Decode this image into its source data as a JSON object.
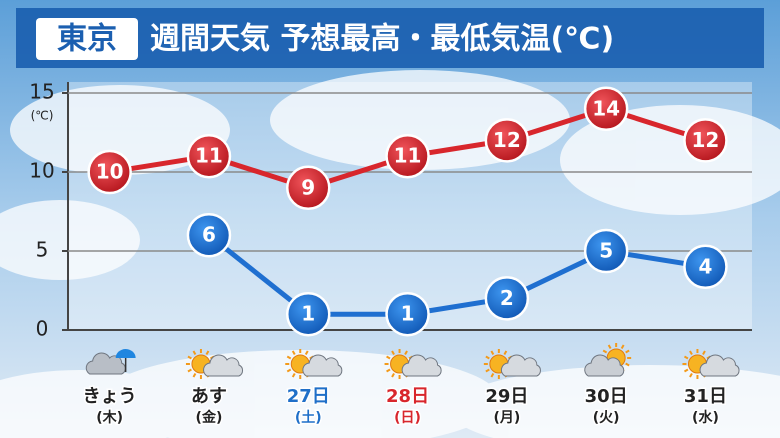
{
  "chart_data": {
    "type": "line",
    "title_badge": "東京",
    "title": "週間天気 予想最高・最低気温(℃)",
    "y_label": "(℃)",
    "categories": [
      "きょう",
      "あす",
      "27日",
      "28日",
      "29日",
      "30日",
      "31日"
    ],
    "weekdays": [
      "(木)",
      "(金)",
      "(土)",
      "(日)",
      "(月)",
      "(火)",
      "(水)"
    ],
    "category_colors": [
      "#222222",
      "#222222",
      "#1f6fc8",
      "#d8262c",
      "#222222",
      "#222222",
      "#222222"
    ],
    "series": [
      {
        "name": "最高気温",
        "color": "#d8262c",
        "values": [
          10,
          11,
          9,
          11,
          12,
          14,
          12
        ]
      },
      {
        "name": "最低気温",
        "color": "#1f6fd0",
        "values": [
          null,
          6,
          1,
          1,
          2,
          5,
          4
        ]
      }
    ],
    "ylim": [
      0,
      15
    ],
    "yticks": [
      0,
      5,
      10,
      15
    ],
    "grid": true
  }
}
